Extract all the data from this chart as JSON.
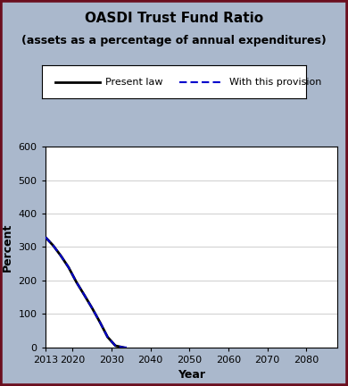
{
  "title": "OASDI Trust Fund Ratio",
  "subtitle": "(assets as a percentage of annual expenditures)",
  "xlabel": "Year",
  "ylabel": "Percent",
  "legend_entries": [
    "Present law",
    "With this provision"
  ],
  "background_color": "#aab8cc",
  "plot_background_color": "#ffffff",
  "outer_border_color": "#6b0e1e",
  "xlim": [
    2013,
    2088
  ],
  "ylim": [
    0,
    600
  ],
  "yticks": [
    0,
    100,
    200,
    300,
    400,
    500,
    600
  ],
  "xticks": [
    2013,
    2020,
    2030,
    2040,
    2050,
    2060,
    2070,
    2080
  ],
  "present_law_x": [
    2013,
    2015,
    2017,
    2019,
    2021,
    2023,
    2025,
    2027,
    2029,
    2031,
    2033
  ],
  "present_law_y": [
    330,
    305,
    274,
    239,
    195,
    157,
    118,
    76,
    31,
    5,
    0
  ],
  "provision_x": [
    2013,
    2015,
    2017,
    2019,
    2021,
    2023,
    2025,
    2027,
    2029,
    2031,
    2033,
    2034
  ],
  "provision_y": [
    330,
    305,
    274,
    239,
    195,
    157,
    118,
    76,
    31,
    5,
    0,
    0
  ],
  "present_law_color": "#000000",
  "provision_color": "#0000cc",
  "legend_box_color": "#ffffff",
  "title_fontsize": 11,
  "subtitle_fontsize": 9,
  "axis_label_fontsize": 9,
  "tick_fontsize": 8,
  "legend_fontsize": 8
}
